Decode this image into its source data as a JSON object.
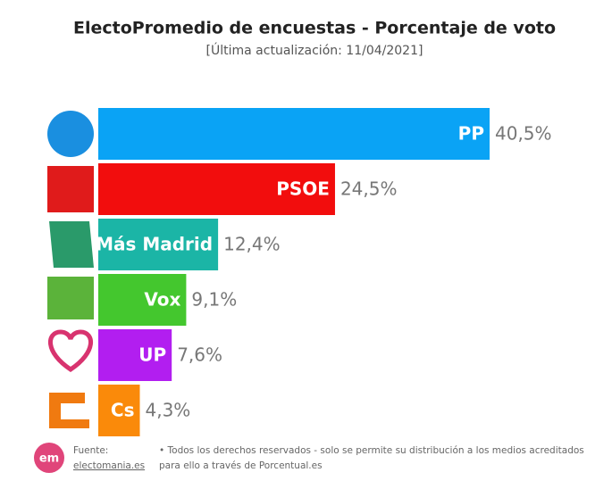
{
  "chart_data": {
    "type": "bar",
    "orientation": "horizontal",
    "title": "ElectoPromedio de encuestas - Porcentaje de voto",
    "subtitle": "[Última actualización: 11/04/2021]",
    "categories": [
      "PP",
      "PSOE",
      "Más Madrid",
      "Vox",
      "UP",
      "Cs"
    ],
    "values": [
      40.5,
      24.5,
      12.4,
      9.1,
      7.6,
      4.3
    ],
    "value_labels": [
      "40,5%",
      "24,5%",
      "12,4%",
      "9,1%",
      "7,6%",
      "4,3%"
    ],
    "colors": [
      "#0aa3f5",
      "#f20d0d",
      "#1bb5a6",
      "#44c72e",
      "#b21ef0",
      "#fa8a0a"
    ],
    "source_label": "Fuente:",
    "source": "electomania.es",
    "logo_text": "em",
    "note": [
      "• Todos los derechos reservados - solo se permite su distribución a los medios acreditados",
      "para ello a través de Porcentual.es"
    ]
  }
}
